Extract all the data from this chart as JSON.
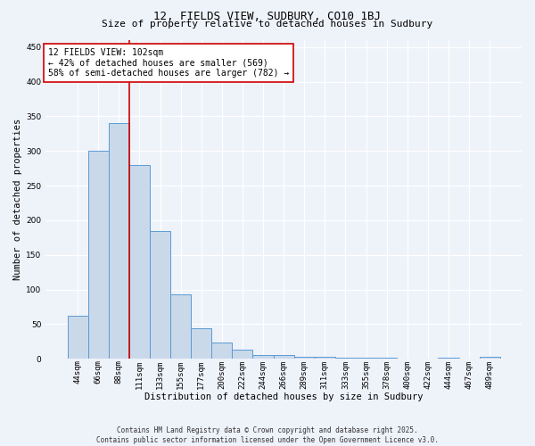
{
  "title": "12, FIELDS VIEW, SUDBURY, CO10 1BJ",
  "subtitle": "Size of property relative to detached houses in Sudbury",
  "xlabel": "Distribution of detached houses by size in Sudbury",
  "ylabel": "Number of detached properties",
  "bar_color": "#c9d9ea",
  "bar_edge_color": "#5b9bd5",
  "background_color": "#eef2f9",
  "grid_color": "#ffffff",
  "categories": [
    "44sqm",
    "66sqm",
    "88sqm",
    "111sqm",
    "133sqm",
    "155sqm",
    "177sqm",
    "200sqm",
    "222sqm",
    "244sqm",
    "266sqm",
    "289sqm",
    "311sqm",
    "333sqm",
    "355sqm",
    "378sqm",
    "400sqm",
    "422sqm",
    "444sqm",
    "467sqm",
    "489sqm"
  ],
  "values": [
    62,
    300,
    340,
    280,
    185,
    93,
    44,
    23,
    13,
    6,
    5,
    3,
    3,
    1,
    1,
    1,
    0,
    0,
    2,
    0,
    3
  ],
  "vline_x": 2.5,
  "vline_color": "#cc0000",
  "annotation_text": "12 FIELDS VIEW: 102sqm\n← 42% of detached houses are smaller (569)\n58% of semi-detached houses are larger (782) →",
  "annotation_box_color": "#ffffff",
  "annotation_box_edgecolor": "#cc0000",
  "ylim": [
    0,
    460
  ],
  "yticks": [
    0,
    50,
    100,
    150,
    200,
    250,
    300,
    350,
    400,
    450
  ],
  "footer": "Contains HM Land Registry data © Crown copyright and database right 2025.\nContains public sector information licensed under the Open Government Licence v3.0.",
  "figsize": [
    6.0,
    5.0
  ],
  "dpi": 100,
  "title_fontsize": 9,
  "subtitle_fontsize": 8,
  "axis_label_fontsize": 7.5,
  "tick_fontsize": 6.5,
  "annotation_fontsize": 7,
  "footer_fontsize": 5.5
}
